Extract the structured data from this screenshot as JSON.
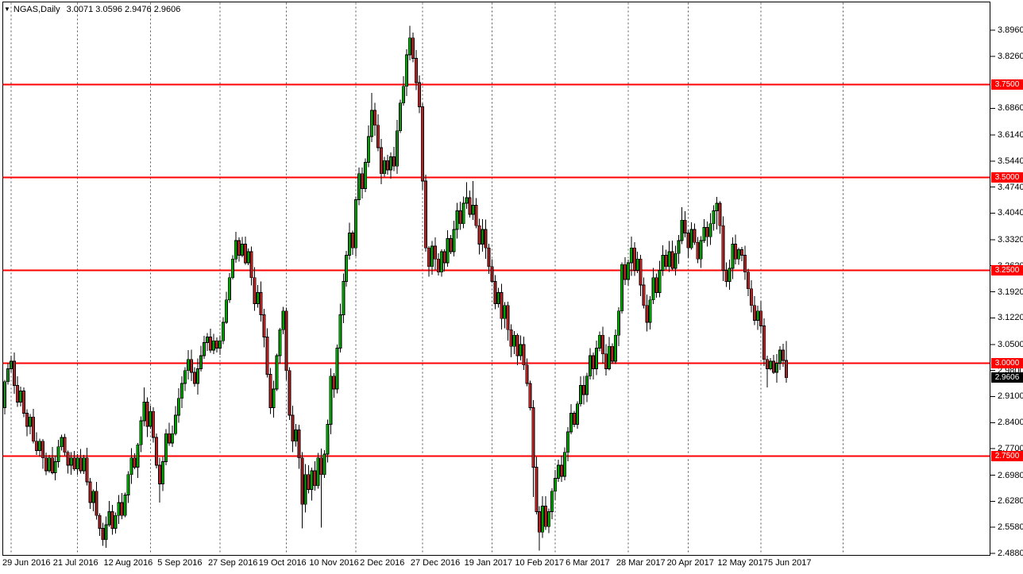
{
  "window": {
    "title_arrow_icon": "▼",
    "symbol_title": "NGAS,Daily",
    "ohlc_line": "3.0071 3.0596 2.9476 2.9606"
  },
  "chart_data": {
    "type": "candlestick",
    "symbol": "NGAS",
    "timeframe": "Daily",
    "title": "NGAS,Daily  3.0071 3.0596 2.9476 2.9606",
    "current_bar_ohlc": {
      "open": 3.0071,
      "high": 3.0596,
      "low": 2.9476,
      "close": 2.9606
    },
    "ylim": [
      2.482,
      3.973
    ],
    "grid": "vertical-dashed-monthly",
    "legend_position": "none",
    "y_axis": {
      "ticks": [
        "3.8960",
        "3.8260",
        "3.6860",
        "3.6140",
        "3.5440",
        "3.4740",
        "3.4040",
        "3.3320",
        "3.2620",
        "3.1920",
        "3.1220",
        "3.0500",
        "2.9800",
        "2.9100",
        "2.8400",
        "2.7700",
        "2.6980",
        "2.6280",
        "2.5580",
        "2.4880"
      ]
    },
    "x_axis": {
      "labels": [
        {
          "text": "29 Jun 2016",
          "bar": 0
        },
        {
          "text": "21 Jul 2016",
          "bar": 16
        },
        {
          "text": "12 Aug 2016",
          "bar": 32
        },
        {
          "text": "5 Sep 2016",
          "bar": 49
        },
        {
          "text": "27 Sep 2016",
          "bar": 65
        },
        {
          "text": "19 Oct 2016",
          "bar": 81
        },
        {
          "text": "10 Nov 2016",
          "bar": 97
        },
        {
          "text": "2 Dec 2016",
          "bar": 113
        },
        {
          "text": "27 Dec 2016",
          "bar": 129
        },
        {
          "text": "19 Jan 2017",
          "bar": 146
        },
        {
          "text": "10 Feb 2017",
          "bar": 162
        },
        {
          "text": "6 Mar 2017",
          "bar": 178
        },
        {
          "text": "28 Mar 2017",
          "bar": 194
        },
        {
          "text": "20 Apr 2017",
          "bar": 210
        },
        {
          "text": "12 May 2017",
          "bar": 226
        },
        {
          "text": "5 Jun 2017",
          "bar": 242
        }
      ],
      "month_gridline_bars": [
        2,
        23,
        46,
        68,
        89,
        111,
        132,
        154,
        174,
        197,
        216,
        239,
        265
      ]
    },
    "hlines": [
      {
        "price": 3.75,
        "label": "3.7500"
      },
      {
        "price": 3.5,
        "label": "3.5000"
      },
      {
        "price": 3.25,
        "label": "3.2500"
      },
      {
        "price": 3.0,
        "label": "3.0000"
      },
      {
        "price": 2.75,
        "label": "2.7500"
      }
    ],
    "current_price_tag": {
      "price": 2.9606,
      "label": "2.9606"
    },
    "colors": {
      "up": "#00a000",
      "down": "#b22222",
      "wick": "#000000",
      "hline": "#fe0000",
      "grid": "#555555",
      "background": "#ffffff",
      "tag_text": "#ffffff",
      "current_tag_bg": "#000000",
      "frame": "#000000"
    },
    "candles": {
      "first_open": 2.88,
      "closes": [
        2.95,
        2.985,
        3.005,
        2.94,
        2.895,
        2.925,
        2.865,
        2.83,
        2.855,
        2.79,
        2.765,
        2.79,
        2.745,
        2.71,
        2.745,
        2.705,
        2.735,
        2.775,
        2.8,
        2.76,
        2.725,
        2.745,
        2.715,
        2.745,
        2.71,
        2.745,
        2.68,
        2.625,
        2.655,
        2.59,
        2.555,
        2.525,
        2.565,
        2.6,
        2.555,
        2.59,
        2.625,
        2.59,
        2.645,
        2.7,
        2.745,
        2.72,
        2.78,
        2.845,
        2.895,
        2.83,
        2.87,
        2.8,
        2.725,
        2.675,
        2.735,
        2.81,
        2.785,
        2.81,
        2.86,
        2.905,
        2.945,
        2.98,
        3.01,
        2.975,
        2.945,
        2.985,
        3.02,
        3.055,
        3.07,
        3.035,
        3.06,
        3.04,
        3.06,
        3.11,
        3.17,
        3.23,
        3.28,
        3.33,
        3.29,
        3.32,
        3.27,
        3.3,
        3.23,
        3.16,
        3.19,
        3.13,
        3.07,
        2.97,
        2.88,
        2.93,
        3.02,
        3.09,
        3.14,
        2.98,
        2.86,
        2.79,
        2.82,
        2.745,
        2.62,
        2.7,
        2.66,
        2.71,
        2.67,
        2.745,
        2.7,
        2.755,
        2.835,
        2.965,
        2.93,
        3.04,
        3.13,
        3.22,
        3.29,
        3.35,
        3.31,
        3.44,
        3.51,
        3.47,
        3.54,
        3.61,
        3.68,
        3.64,
        3.58,
        3.51,
        3.545,
        3.52,
        3.555,
        3.53,
        3.625,
        3.7,
        3.745,
        3.83,
        3.875,
        3.82,
        3.755,
        3.69,
        3.49,
        3.31,
        3.26,
        3.315,
        3.28,
        3.245,
        3.3,
        3.27,
        3.335,
        3.3,
        3.36,
        3.41,
        3.375,
        3.43,
        3.445,
        3.4,
        3.425,
        3.37,
        3.32,
        3.36,
        3.31,
        3.26,
        3.22,
        3.16,
        3.19,
        3.12,
        3.155,
        3.09,
        3.045,
        3.075,
        3.02,
        3.05,
        2.995,
        2.945,
        2.88,
        2.72,
        2.6,
        2.545,
        2.615,
        2.56,
        2.6,
        2.655,
        2.69,
        2.725,
        2.695,
        2.76,
        2.815,
        2.865,
        2.835,
        2.89,
        2.94,
        2.915,
        2.965,
        3.02,
        2.985,
        3.04,
        3.075,
        3.025,
        2.985,
        3.045,
        3.005,
        3.075,
        3.14,
        3.265,
        3.225,
        3.27,
        3.31,
        3.25,
        3.28,
        3.21,
        3.155,
        3.11,
        3.17,
        3.23,
        3.19,
        3.25,
        3.29,
        3.26,
        3.3,
        3.255,
        3.295,
        3.33,
        3.385,
        3.35,
        3.31,
        3.36,
        3.325,
        3.28,
        3.33,
        3.365,
        3.34,
        3.375,
        3.41,
        3.43,
        3.37,
        3.25,
        3.22,
        3.255,
        3.32,
        3.28,
        3.305,
        3.29,
        3.245,
        3.2,
        3.155,
        3.115,
        3.14,
        3.1,
        3.01,
        2.985,
        3.005,
        2.975,
        3.0,
        3.035,
        3.007,
        2.9606
      ],
      "wick_overrides": {
        "2": [
          3.02,
          2.975
        ],
        "31": [
          2.57,
          2.508
        ],
        "44": [
          2.935,
          2.83
        ],
        "49": [
          2.745,
          2.625
        ],
        "73": [
          3.353,
          3.27
        ],
        "94": [
          2.76,
          2.555
        ],
        "100": [
          2.77,
          2.557
        ],
        "116": [
          3.727,
          3.595
        ],
        "128": [
          3.908,
          3.815
        ],
        "146": [
          3.487,
          3.415
        ],
        "148": [
          3.49,
          3.385
        ],
        "167": [
          2.9,
          2.64
        ],
        "169": [
          2.615,
          2.496
        ],
        "198": [
          3.34,
          3.235
        ],
        "203": [
          3.185,
          3.085
        ],
        "214": [
          3.42,
          3.32
        ],
        "225": [
          3.447,
          3.36
        ],
        "241": [
          3.02,
          2.935
        ],
        "247": [
          3.0596,
          2.9476
        ]
      }
    }
  }
}
